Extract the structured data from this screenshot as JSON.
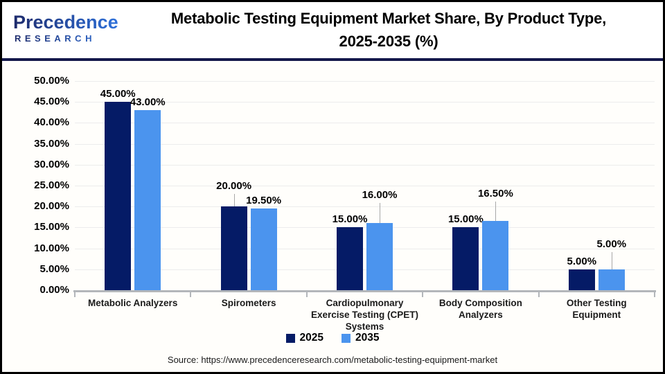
{
  "header": {
    "logo": {
      "line1": "Precedence",
      "line2": "RESEARCH"
    },
    "title_line1": "Metabolic Testing Equipment Market Share, By Product Type,",
    "title_line2": "2025-2035 (%)"
  },
  "chart_data": {
    "type": "bar",
    "title": "Metabolic Testing Equipment Market Share, By Product Type, 2025-2035 (%)",
    "categories": [
      "Metabolic Analyzers",
      "Spirometers",
      "Cardiopulmonary Exercise Testing (CPET) Systems",
      "Body Composition Analyzers",
      "Other Testing Equipment"
    ],
    "x_tick_lines": [
      [
        "Metabolic Analyzers"
      ],
      [
        "Spirometers"
      ],
      [
        "Cardiopulmonary",
        "Exercise Testing (CPET)",
        "Systems"
      ],
      [
        "Body Composition",
        "Analyzers"
      ],
      [
        "Other Testing",
        "Equipment"
      ]
    ],
    "series": [
      {
        "name": "2025",
        "color": "#051B66",
        "values": [
          45,
          20,
          15,
          15,
          5
        ],
        "data_labels": [
          "45.00%",
          "20.00%",
          "15.00%",
          "15.00%",
          "5.00%"
        ],
        "label_raise": [
          0,
          18,
          0,
          0,
          0
        ]
      },
      {
        "name": "2035",
        "color": "#4B94EE",
        "values": [
          43,
          19.5,
          16,
          16.5,
          5
        ],
        "data_labels": [
          "43.00%",
          "19.50%",
          "16.00%",
          "16.50%",
          "5.00%"
        ],
        "label_raise": [
          0,
          0,
          29,
          28,
          25
        ]
      }
    ],
    "xlabel": "",
    "ylabel": "",
    "ylim": [
      0,
      50
    ],
    "ytick_step": 5,
    "ytick_labels": [
      "0.00%",
      "5.00%",
      "10.00%",
      "15.00%",
      "20.00%",
      "25.00%",
      "30.00%",
      "35.00%",
      "40.00%",
      "45.00%",
      "50.00%"
    ],
    "grid": true,
    "legend_position": "bottom"
  },
  "footer": {
    "source": "Source: https://www.precedenceresearch.com/metabolic-testing-equipment-market"
  }
}
